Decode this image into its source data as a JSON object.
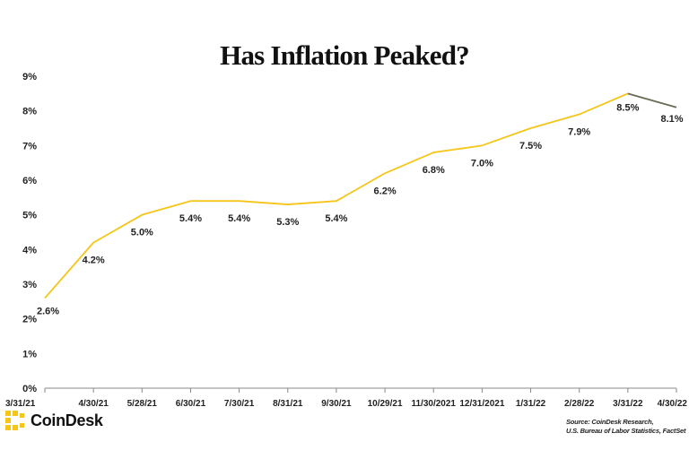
{
  "brand": {
    "name": "CoinDesk",
    "accent": "#F5C518"
  },
  "source_lines": [
    "Source: CoinDesk Research,",
    "U.S. Bureau of Labor Statistics, FactSet"
  ],
  "chart_data": {
    "type": "line",
    "title": "Has Inflation Peaked?",
    "xlabel": "",
    "ylabel": "",
    "ylim": [
      0,
      9
    ],
    "yticks": [
      "0%",
      "1%",
      "2%",
      "3%",
      "4%",
      "5%",
      "6%",
      "7%",
      "8%",
      "9%"
    ],
    "grid": false,
    "categories": [
      "3/31/21",
      "4/30/21",
      "5/28/21",
      "6/30/21",
      "7/30/21",
      "8/31/21",
      "9/30/21",
      "10/29/21",
      "11/30/2021",
      "12/31/2021",
      "1/31/22",
      "2/28/22",
      "3/31/22",
      "4/30/22"
    ],
    "values": [
      2.6,
      4.2,
      5.0,
      5.4,
      5.4,
      5.3,
      5.4,
      6.2,
      6.8,
      7.0,
      7.5,
      7.9,
      8.5,
      8.1
    ],
    "data_labels": [
      "2.6%",
      "4.2%",
      "5.0%",
      "5.4%",
      "5.4%",
      "5.3%",
      "5.4%",
      "6.2%",
      "6.8%",
      "7.0%",
      "7.5%",
      "7.9%",
      "8.5%",
      "8.1%"
    ],
    "line_color": "#F5C518",
    "last_segment_color": "#6B6B55",
    "axis_color": "#888888"
  }
}
